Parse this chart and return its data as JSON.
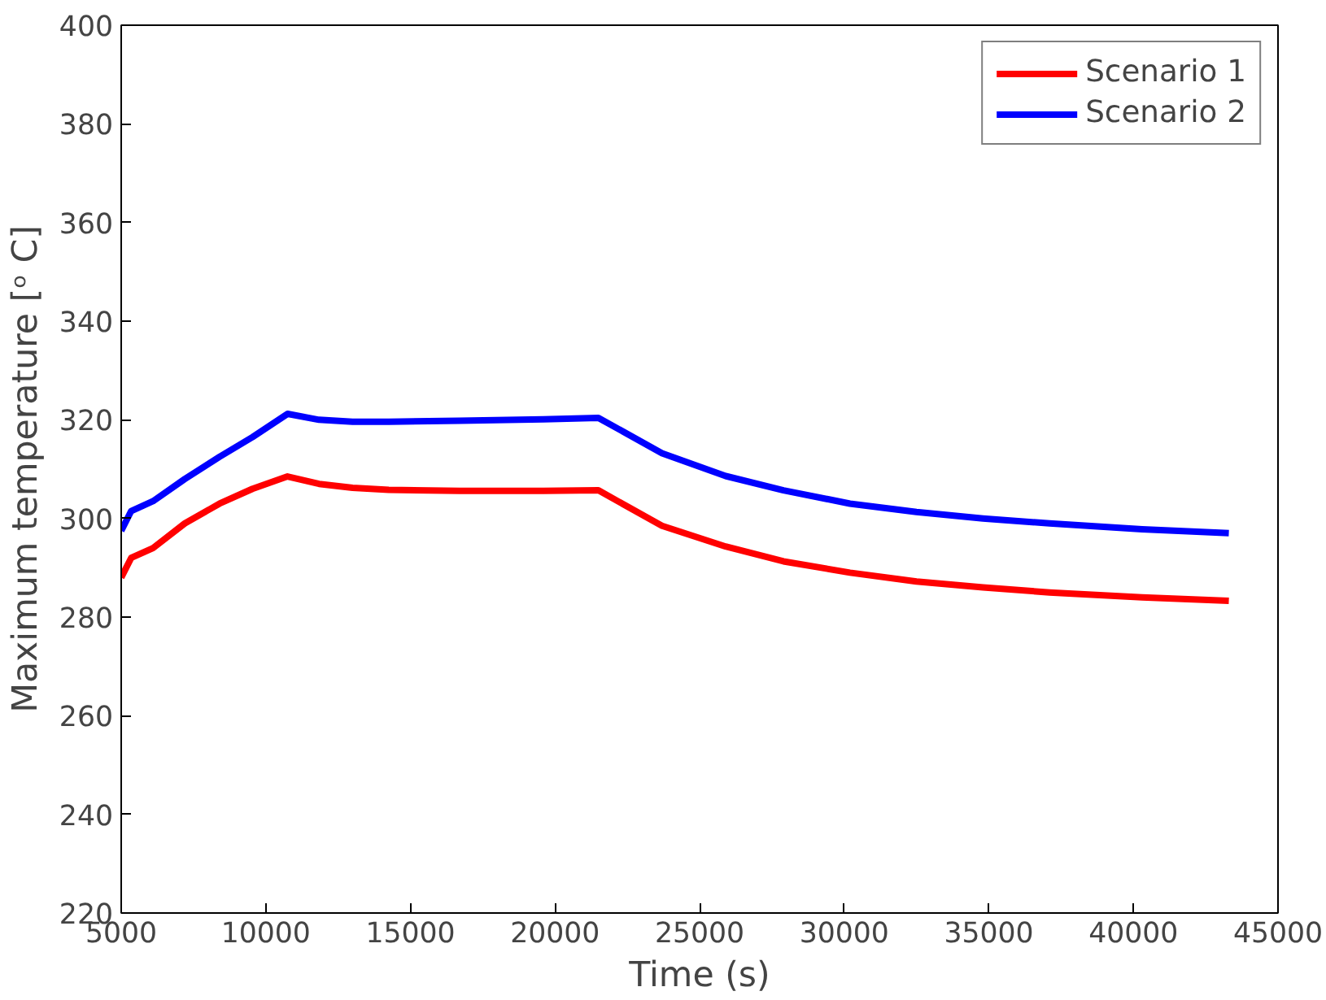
{
  "chart_data": {
    "type": "line",
    "xlabel": "Time (s)",
    "ylabel": "Maximum temperature [ᵒ C]",
    "x": [
      5000,
      5345,
      6100,
      7200,
      8400,
      9540,
      10750,
      11840,
      13000,
      14250,
      16700,
      19600,
      21500,
      23700,
      25900,
      27900,
      30200,
      32500,
      34800,
      37100,
      40300,
      43300
    ],
    "series": [
      {
        "name": "Scenario 1",
        "color": "#ff0000",
        "values": [
          288,
          292,
          294,
          299,
          303,
          306,
          308.5,
          307,
          306.2,
          305.8,
          305.6,
          305.6,
          305.7,
          298.5,
          294.3,
          291.3,
          289,
          287.2,
          286,
          285,
          284,
          283.3
        ]
      },
      {
        "name": "Scenario 2",
        "color": "#0000ff",
        "values": [
          297.5,
          301.5,
          303.5,
          308,
          312.5,
          316.5,
          321.2,
          320,
          319.6,
          319.6,
          319.8,
          320.1,
          320.4,
          313.2,
          308.6,
          305.7,
          303,
          301.3,
          300,
          299,
          297.8,
          297
        ]
      }
    ],
    "xlim": [
      5000,
      45000
    ],
    "ylim": [
      220,
      400
    ],
    "xticks": [
      5000,
      10000,
      15000,
      20000,
      25000,
      30000,
      35000,
      40000,
      45000
    ],
    "yticks": [
      220,
      240,
      260,
      280,
      300,
      320,
      340,
      360,
      380,
      400
    ],
    "legend": "top right",
    "grid": false,
    "line_style": "solid"
  }
}
